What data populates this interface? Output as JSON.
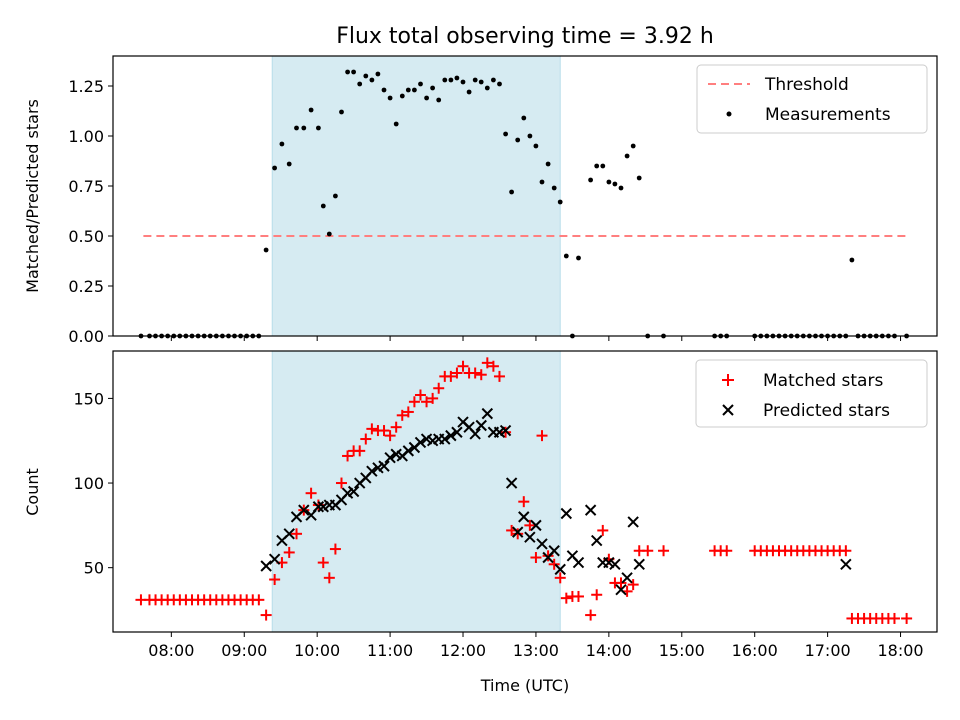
{
  "chart_data": [
    {
      "type": "scatter",
      "title": "Flux total observing time = 3.92 h",
      "xlabel": "",
      "ylabel": "Matched/Predicted stars",
      "ylim": [
        0,
        1.4
      ],
      "yticks": [
        0.0,
        0.25,
        0.5,
        0.75,
        1.0,
        1.25
      ],
      "legend": "top-right",
      "shaded_interval": [
        "09:23",
        "13:20"
      ],
      "threshold": {
        "name": "Threshold",
        "value": 0.5,
        "x_range": [
          "07:37",
          "18:05"
        ],
        "color": "#ff7f7f"
      },
      "series": [
        {
          "name": "Measurements",
          "color": "#000000",
          "x": [
            "07:35",
            "07:42",
            "07:47",
            "07:52",
            "07:57",
            "08:02",
            "08:07",
            "08:12",
            "08:17",
            "08:22",
            "08:27",
            "08:32",
            "08:37",
            "08:42",
            "08:47",
            "08:52",
            "08:57",
            "09:02",
            "09:07",
            "09:12",
            "09:18",
            "09:25",
            "09:31",
            "09:37",
            "09:43",
            "09:49",
            "09:55",
            "10:01",
            "10:05",
            "10:10",
            "10:15",
            "10:20",
            "10:25",
            "10:30",
            "10:35",
            "10:40",
            "10:45",
            "10:50",
            "10:55",
            "11:00",
            "11:05",
            "11:10",
            "11:15",
            "11:20",
            "11:25",
            "11:30",
            "11:35",
            "11:40",
            "11:45",
            "11:50",
            "11:55",
            "12:00",
            "12:05",
            "12:10",
            "12:15",
            "12:20",
            "12:25",
            "12:30",
            "12:35",
            "12:40",
            "12:45",
            "12:50",
            "12:55",
            "13:00",
            "13:05",
            "13:10",
            "13:15",
            "13:20",
            "13:25",
            "13:30",
            "13:35",
            "13:45",
            "13:50",
            "13:55",
            "14:00",
            "14:05",
            "14:10",
            "14:15",
            "14:20",
            "14:25",
            "14:32",
            "14:45",
            "15:27",
            "15:32",
            "15:37",
            "16:00",
            "16:05",
            "16:10",
            "16:15",
            "16:20",
            "16:25",
            "16:30",
            "16:35",
            "16:40",
            "16:45",
            "16:50",
            "16:55",
            "17:00",
            "17:05",
            "17:10",
            "17:15",
            "17:20",
            "17:25",
            "17:30",
            "17:35",
            "17:40",
            "17:45",
            "17:50",
            "17:55",
            "18:05"
          ],
          "y": [
            0,
            0,
            0,
            0,
            0,
            0,
            0,
            0,
            0,
            0,
            0,
            0,
            0,
            0,
            0,
            0,
            0,
            0,
            0,
            0,
            0.43,
            0.84,
            0.96,
            0.86,
            1.04,
            1.04,
            1.13,
            1.04,
            0.65,
            0.51,
            0.7,
            1.12,
            1.32,
            1.32,
            1.26,
            1.3,
            1.28,
            1.31,
            1.23,
            1.19,
            1.06,
            1.2,
            1.23,
            1.23,
            1.26,
            1.19,
            1.24,
            1.18,
            1.28,
            1.28,
            1.29,
            1.27,
            1.22,
            1.28,
            1.27,
            1.24,
            1.28,
            1.26,
            1.01,
            0.72,
            0.98,
            1.09,
            1.0,
            0.95,
            0.77,
            0.86,
            0.74,
            0.67,
            0.4,
            0.0,
            0.39,
            0.78,
            0.85,
            0.85,
            0.77,
            0.76,
            0.74,
            0.9,
            0.95,
            0.79,
            0.0,
            0.0,
            0.0,
            0.0,
            0.0,
            0.0,
            0.0,
            0.0,
            0.0,
            0.0,
            0.0,
            0.0,
            0.0,
            0.0,
            0.0,
            0.0,
            0.0,
            0.0,
            0.0,
            0.0,
            0.0,
            0.38,
            0.0,
            0.0,
            0.0,
            0.0,
            0.0,
            0.0,
            0.0,
            0.0
          ]
        }
      ]
    },
    {
      "type": "scatter",
      "title": "",
      "xlabel": "Time (UTC)",
      "ylabel": "Count",
      "ylim": [
        12,
        178
      ],
      "yticks": [
        50,
        100,
        150
      ],
      "xticks": [
        "08:00",
        "09:00",
        "10:00",
        "11:00",
        "12:00",
        "13:00",
        "14:00",
        "15:00",
        "16:00",
        "17:00",
        "18:00"
      ],
      "legend": "top-right",
      "shaded_interval": [
        "09:23",
        "13:20"
      ],
      "series": [
        {
          "name": "Matched stars",
          "color": "#ff0000",
          "marker": "plus",
          "x": [
            "07:35",
            "07:42",
            "07:47",
            "07:52",
            "07:57",
            "08:02",
            "08:07",
            "08:12",
            "08:17",
            "08:22",
            "08:27",
            "08:32",
            "08:37",
            "08:42",
            "08:47",
            "08:52",
            "08:57",
            "09:02",
            "09:07",
            "09:12",
            "09:18",
            "09:25",
            "09:31",
            "09:37",
            "09:43",
            "09:49",
            "09:55",
            "10:01",
            "10:05",
            "10:10",
            "10:15",
            "10:20",
            "10:25",
            "10:30",
            "10:35",
            "10:40",
            "10:45",
            "10:50",
            "10:55",
            "11:00",
            "11:05",
            "11:10",
            "11:15",
            "11:20",
            "11:25",
            "11:30",
            "11:35",
            "11:40",
            "11:45",
            "11:50",
            "11:55",
            "12:00",
            "12:05",
            "12:10",
            "12:15",
            "12:20",
            "12:25",
            "12:30",
            "12:35",
            "12:40",
            "12:45",
            "12:50",
            "12:55",
            "13:00",
            "13:05",
            "13:10",
            "13:15",
            "13:20",
            "13:25",
            "13:30",
            "13:35",
            "13:45",
            "13:50",
            "13:55",
            "14:00",
            "14:05",
            "14:10",
            "14:15",
            "14:20",
            "14:25",
            "14:32",
            "14:45",
            "15:27",
            "15:32",
            "15:37",
            "16:00",
            "16:05",
            "16:10",
            "16:15",
            "16:20",
            "16:25",
            "16:30",
            "16:35",
            "16:40",
            "16:45",
            "16:50",
            "16:55",
            "17:00",
            "17:05",
            "17:10",
            "17:15",
            "17:20",
            "17:25",
            "17:30",
            "17:35",
            "17:40",
            "17:45",
            "17:50",
            "17:55",
            "18:05"
          ],
          "y": [
            31,
            31,
            31,
            31,
            31,
            31,
            31,
            31,
            31,
            31,
            31,
            31,
            31,
            31,
            31,
            31,
            31,
            31,
            31,
            31,
            22,
            43,
            53,
            59,
            70,
            84,
            94,
            87,
            53,
            44,
            61,
            100,
            116,
            119,
            119,
            126,
            132,
            131,
            131,
            128,
            133,
            140,
            142,
            148,
            152,
            148,
            150,
            156,
            163,
            163,
            165,
            169,
            165,
            165,
            164,
            171,
            169,
            163,
            130,
            72,
            70,
            89,
            75,
            56,
            128,
            57,
            52,
            44,
            32,
            33,
            33,
            22,
            34,
            72,
            55,
            41,
            41,
            36,
            40,
            60,
            60,
            60,
            60,
            60,
            60,
            60,
            60,
            60,
            60,
            60,
            60,
            60,
            60,
            60,
            60,
            60,
            60,
            60,
            60,
            60,
            60,
            20,
            20,
            20,
            20,
            20,
            20,
            20,
            20,
            20
          ]
        },
        {
          "name": "Predicted stars",
          "color": "#000000",
          "marker": "x",
          "x": [
            "09:18",
            "09:25",
            "09:31",
            "09:37",
            "09:43",
            "09:49",
            "09:55",
            "10:01",
            "10:05",
            "10:10",
            "10:15",
            "10:20",
            "10:25",
            "10:30",
            "10:35",
            "10:40",
            "10:45",
            "10:50",
            "10:55",
            "11:00",
            "11:05",
            "11:10",
            "11:15",
            "11:20",
            "11:25",
            "11:30",
            "11:35",
            "11:40",
            "11:45",
            "11:50",
            "11:55",
            "12:00",
            "12:05",
            "12:10",
            "12:15",
            "12:20",
            "12:25",
            "12:30",
            "12:35",
            "12:40",
            "12:45",
            "12:50",
            "12:55",
            "13:00",
            "13:05",
            "13:10",
            "13:15",
            "13:20",
            "13:25",
            "13:30",
            "13:35",
            "13:45",
            "13:50",
            "13:55",
            "14:00",
            "14:05",
            "14:10",
            "14:15",
            "14:20",
            "14:25",
            "17:15"
          ],
          "y": [
            51,
            55,
            66,
            70,
            80,
            84,
            81,
            86,
            86,
            87,
            87,
            90,
            94,
            95,
            100,
            103,
            107,
            109,
            110,
            115,
            117,
            116,
            119,
            121,
            124,
            126,
            125,
            126,
            126,
            128,
            130,
            136,
            133,
            129,
            134,
            141,
            130,
            130,
            131,
            100,
            71,
            80,
            68,
            75,
            64,
            56,
            60,
            49,
            82,
            57,
            53,
            84,
            66,
            53,
            53,
            52,
            37,
            44,
            77,
            52,
            52
          ]
        }
      ]
    }
  ]
}
